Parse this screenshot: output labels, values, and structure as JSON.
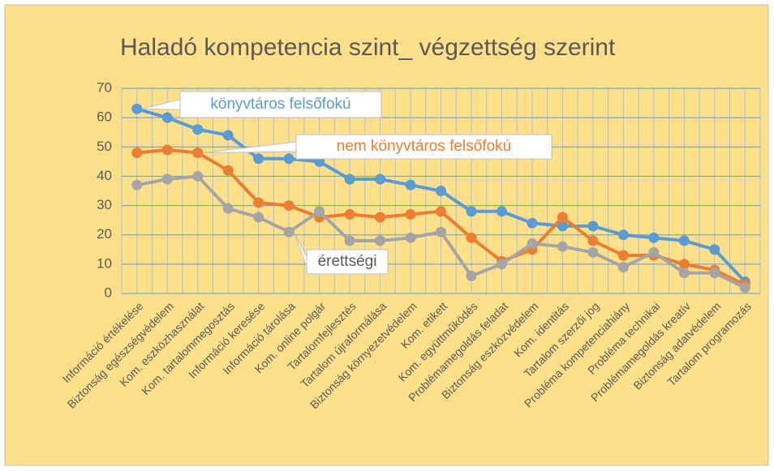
{
  "chart_data": {
    "type": "line",
    "title": "Haladó kompetencia szint_ végzettség szerint",
    "categories": [
      "Információ értékelése",
      "Biztonság egészségvédelem",
      "Kom. eszközhasználat",
      "Kom. tartalommegosztás",
      "Információ keresése",
      "Információ tárolása",
      "Kom. online polgár",
      "Tartalomfejlesztés",
      "Tartalom újraformálása",
      "Biztonság környezetvédelem",
      "Kom. etikett",
      "Kom. együttműködés",
      "Problémamegoldás feladat",
      "Biztonság eszközvédelem",
      "Kom. identitás",
      "Tartalom szerzői jog",
      "Probléma kompetenciahiány",
      "Probléma technikai",
      "Problémamegoldás kreatív",
      "Biztonság adatvédelem",
      "Tartalom programozás"
    ],
    "series": [
      {
        "name": "könyvtáros felsőfokú",
        "color": "#5b9bd5",
        "values": [
          63,
          60,
          56,
          54,
          46,
          46,
          45,
          39,
          39,
          37,
          35,
          28,
          28,
          24,
          23,
          23,
          20,
          19,
          18,
          15,
          4
        ]
      },
      {
        "name": "nem könyvtáros felsőfokú",
        "color": "#ed7d31",
        "values": [
          48,
          49,
          48,
          42,
          31,
          30,
          26,
          27,
          26,
          27,
          28,
          19,
          11,
          15,
          26,
          18,
          13,
          13,
          10,
          8,
          3
        ]
      },
      {
        "name": "érettségi",
        "color": "#a5a5a5",
        "values": [
          37,
          39,
          40,
          29,
          26,
          21,
          28,
          18,
          18,
          19,
          21,
          6,
          10,
          17,
          16,
          14,
          9,
          14,
          7,
          7,
          2
        ]
      }
    ],
    "ylim": [
      0,
      70
    ],
    "yticks": [
      0,
      10,
      20,
      30,
      40,
      50,
      60,
      70
    ],
    "grid": true
  }
}
